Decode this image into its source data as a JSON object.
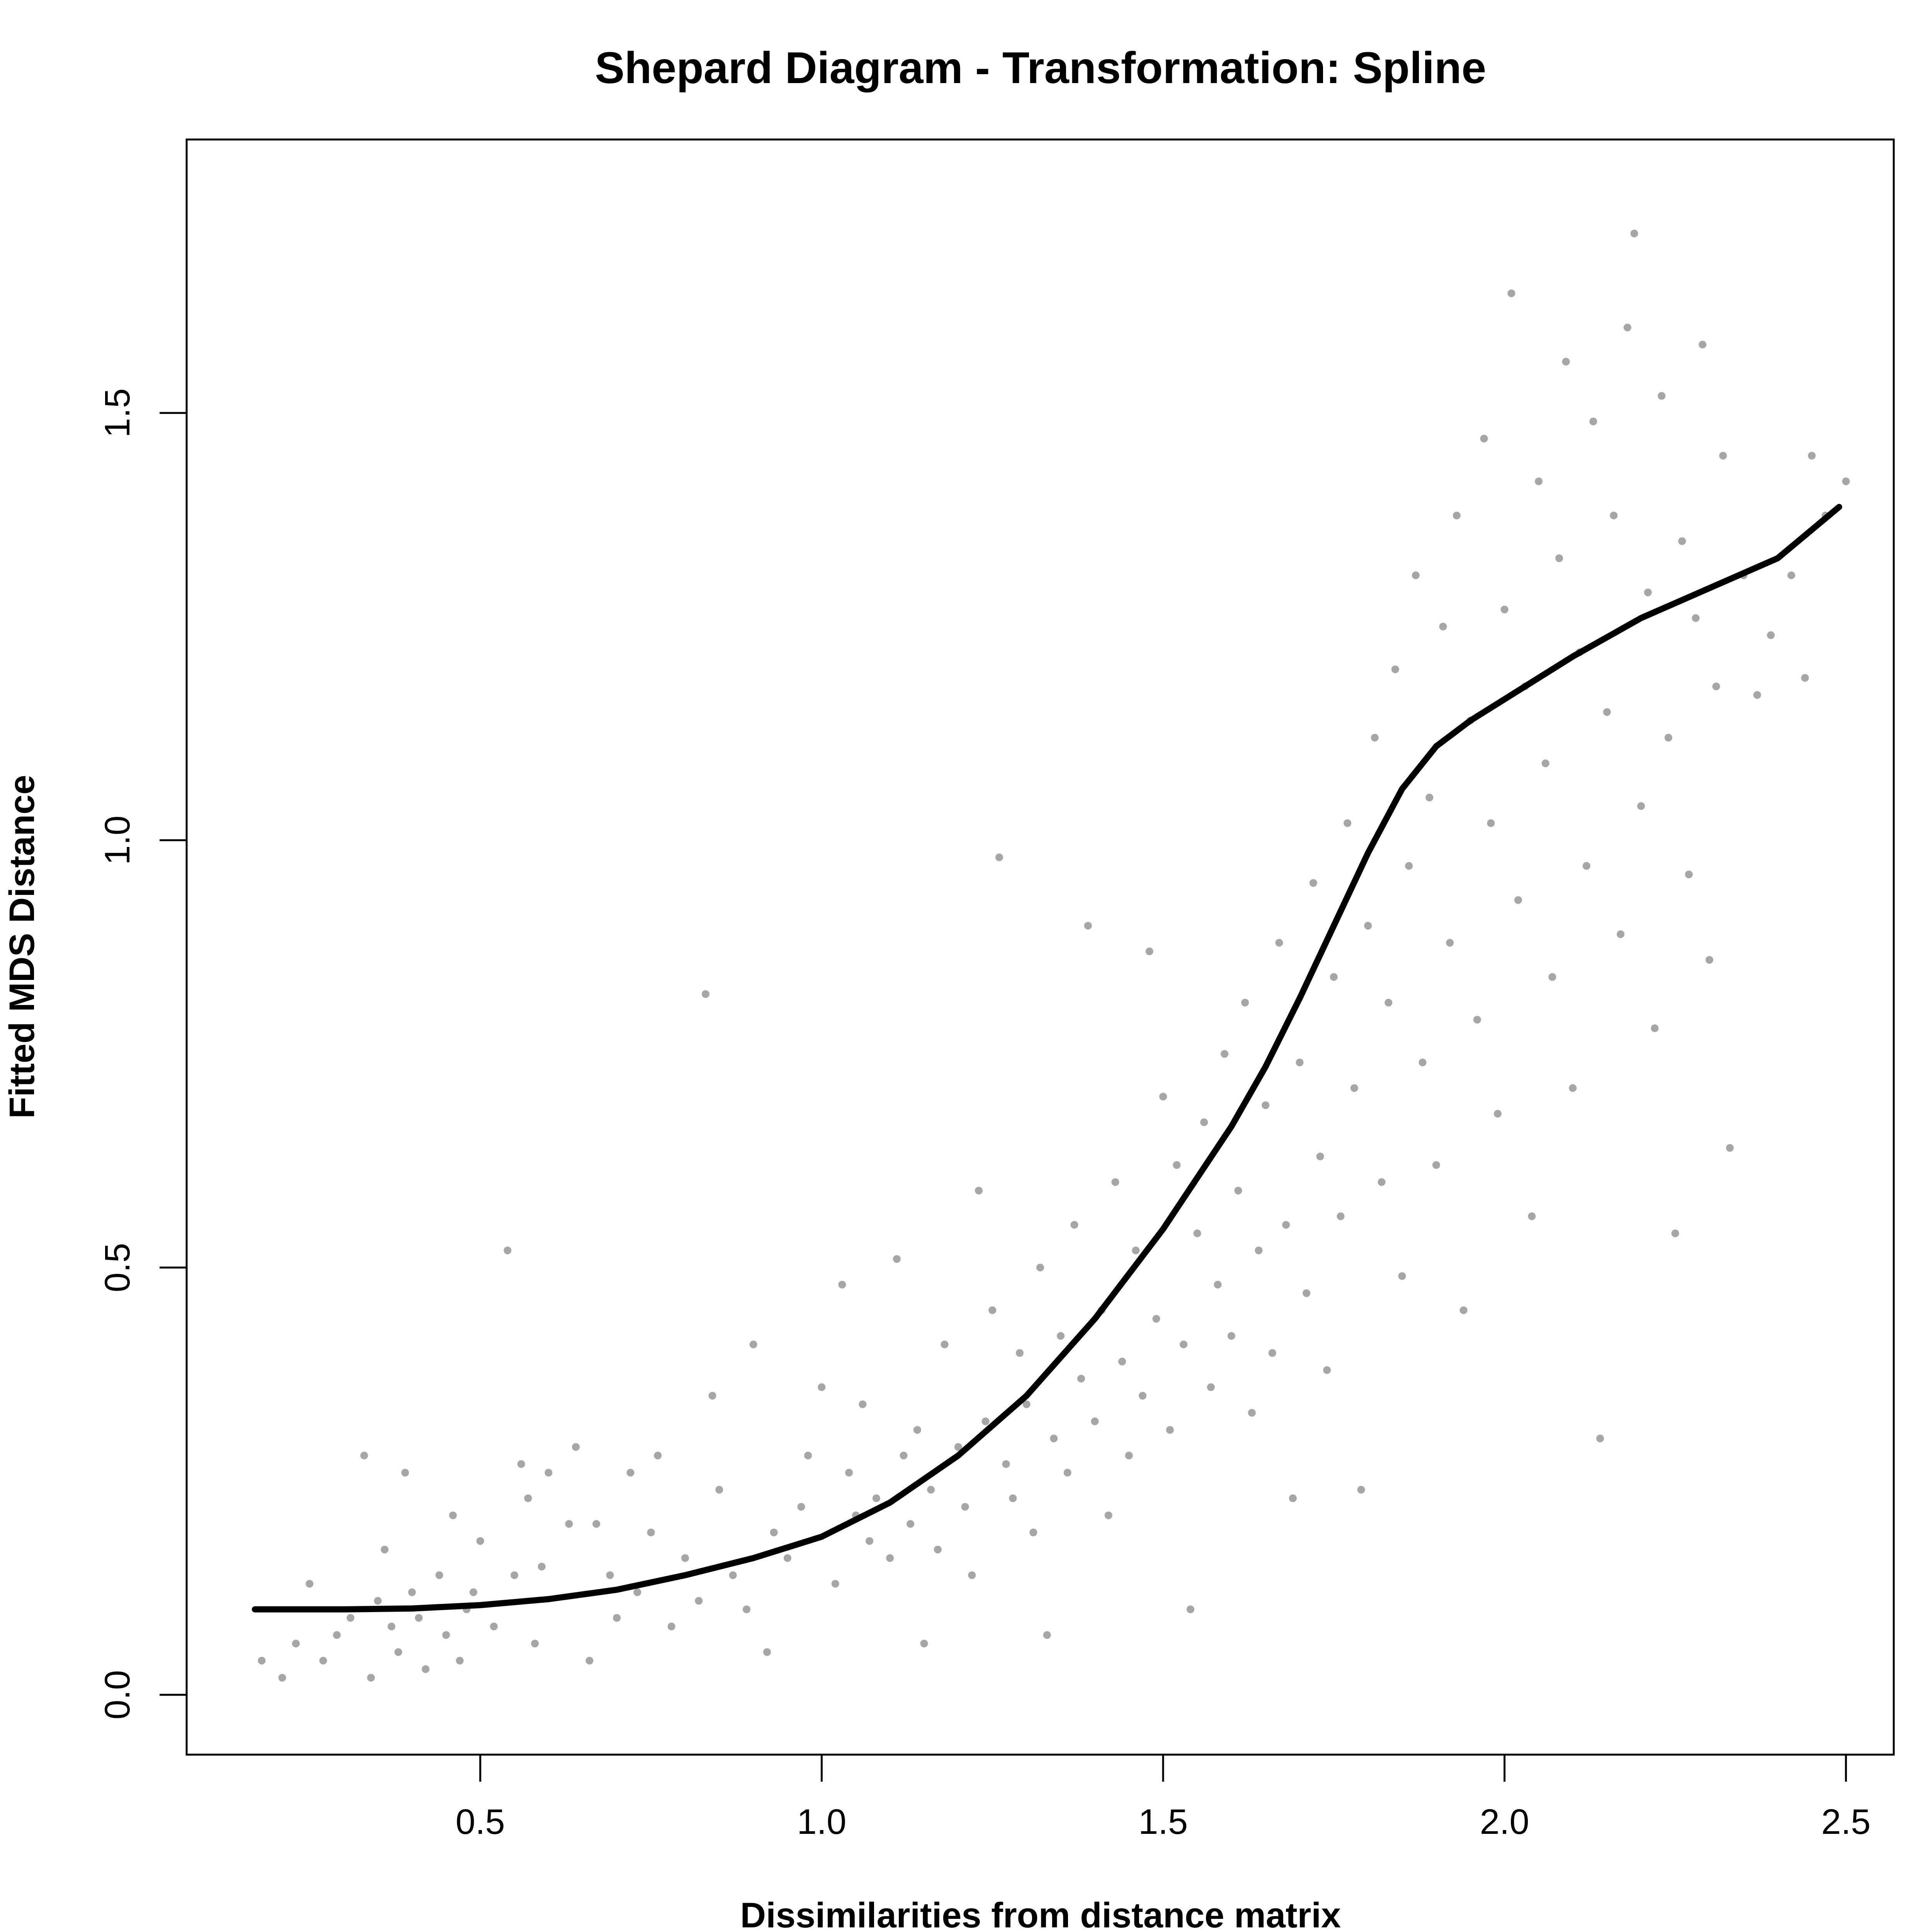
{
  "chart_data": {
    "type": "scatter",
    "title": "Shepard Diagram - Transformation: Spline",
    "xlabel": "Dissimilarities from distance matrix",
    "ylabel": "Fitted MDS Distance",
    "xlim": [
      0.07,
      2.57
    ],
    "ylim": [
      -0.07,
      1.82
    ],
    "x_ticks": [
      0.5,
      1.0,
      1.5,
      2.0,
      2.5
    ],
    "x_tick_labels": [
      "0.5",
      "1.0",
      "1.5",
      "2.0",
      "2.5"
    ],
    "y_ticks": [
      0.0,
      0.5,
      1.0,
      1.5
    ],
    "y_tick_labels": [
      "0.0",
      "0.5",
      "1.0",
      "1.5"
    ],
    "grid": false,
    "legend": "none",
    "series": [
      {
        "kind": "points",
        "color": "#a6a6a6",
        "values": [
          [
            0.18,
            0.04
          ],
          [
            0.21,
            0.02
          ],
          [
            0.23,
            0.06
          ],
          [
            0.25,
            0.13
          ],
          [
            0.27,
            0.04
          ],
          [
            0.29,
            0.07
          ],
          [
            0.31,
            0.09
          ],
          [
            0.33,
            0.28
          ],
          [
            0.34,
            0.02
          ],
          [
            0.35,
            0.11
          ],
          [
            0.36,
            0.17
          ],
          [
            0.37,
            0.08
          ],
          [
            0.38,
            0.05
          ],
          [
            0.39,
            0.26
          ],
          [
            0.4,
            0.12
          ],
          [
            0.41,
            0.09
          ],
          [
            0.42,
            0.03
          ],
          [
            0.44,
            0.14
          ],
          [
            0.45,
            0.07
          ],
          [
            0.46,
            0.21
          ],
          [
            0.47,
            0.04
          ],
          [
            0.48,
            0.1
          ],
          [
            0.49,
            0.12
          ],
          [
            0.5,
            0.18
          ],
          [
            0.52,
            0.08
          ],
          [
            0.54,
            0.52
          ],
          [
            0.55,
            0.14
          ],
          [
            0.56,
            0.27
          ],
          [
            0.57,
            0.23
          ],
          [
            0.58,
            0.06
          ],
          [
            0.59,
            0.15
          ],
          [
            0.6,
            0.26
          ],
          [
            0.63,
            0.2
          ],
          [
            0.64,
            0.29
          ],
          [
            0.66,
            0.04
          ],
          [
            0.67,
            0.2
          ],
          [
            0.69,
            0.14
          ],
          [
            0.7,
            0.09
          ],
          [
            0.72,
            0.26
          ],
          [
            0.73,
            0.12
          ],
          [
            0.75,
            0.19
          ],
          [
            0.76,
            0.28
          ],
          [
            0.78,
            0.08
          ],
          [
            0.8,
            0.16
          ],
          [
            0.82,
            0.11
          ],
          [
            0.83,
            0.82
          ],
          [
            0.84,
            0.35
          ],
          [
            0.85,
            0.24
          ],
          [
            0.87,
            0.14
          ],
          [
            0.89,
            0.1
          ],
          [
            0.9,
            0.41
          ],
          [
            0.92,
            0.05
          ],
          [
            0.93,
            0.19
          ],
          [
            0.95,
            0.16
          ],
          [
            0.97,
            0.22
          ],
          [
            0.98,
            0.28
          ],
          [
            1.0,
            0.36
          ],
          [
            1.02,
            0.13
          ],
          [
            1.03,
            0.48
          ],
          [
            1.04,
            0.26
          ],
          [
            1.05,
            0.21
          ],
          [
            1.06,
            0.34
          ],
          [
            1.07,
            0.18
          ],
          [
            1.08,
            0.23
          ],
          [
            1.1,
            0.16
          ],
          [
            1.11,
            0.51
          ],
          [
            1.12,
            0.28
          ],
          [
            1.13,
            0.2
          ],
          [
            1.14,
            0.31
          ],
          [
            1.15,
            0.06
          ],
          [
            1.16,
            0.24
          ],
          [
            1.17,
            0.17
          ],
          [
            1.18,
            0.41
          ],
          [
            1.2,
            0.29
          ],
          [
            1.21,
            0.22
          ],
          [
            1.22,
            0.14
          ],
          [
            1.23,
            0.59
          ],
          [
            1.24,
            0.32
          ],
          [
            1.25,
            0.45
          ],
          [
            1.26,
            0.98
          ],
          [
            1.27,
            0.27
          ],
          [
            1.28,
            0.23
          ],
          [
            1.29,
            0.4
          ],
          [
            1.3,
            0.34
          ],
          [
            1.31,
            0.19
          ],
          [
            1.32,
            0.5
          ],
          [
            1.33,
            0.07
          ],
          [
            1.34,
            0.3
          ],
          [
            1.35,
            0.42
          ],
          [
            1.36,
            0.26
          ],
          [
            1.37,
            0.55
          ],
          [
            1.38,
            0.37
          ],
          [
            1.39,
            0.9
          ],
          [
            1.4,
            0.32
          ],
          [
            1.41,
            0.45
          ],
          [
            1.42,
            0.21
          ],
          [
            1.43,
            0.6
          ],
          [
            1.44,
            0.39
          ],
          [
            1.45,
            0.28
          ],
          [
            1.46,
            0.52
          ],
          [
            1.47,
            0.35
          ],
          [
            1.48,
            0.87
          ],
          [
            1.49,
            0.44
          ],
          [
            1.5,
            0.7
          ],
          [
            1.51,
            0.31
          ],
          [
            1.52,
            0.62
          ],
          [
            1.53,
            0.41
          ],
          [
            1.54,
            0.1
          ],
          [
            1.55,
            0.54
          ],
          [
            1.56,
            0.67
          ],
          [
            1.57,
            0.36
          ],
          [
            1.58,
            0.48
          ],
          [
            1.59,
            0.75
          ],
          [
            1.6,
            0.42
          ],
          [
            1.61,
            0.59
          ],
          [
            1.62,
            0.81
          ],
          [
            1.63,
            0.33
          ],
          [
            1.64,
            0.52
          ],
          [
            1.65,
            0.69
          ],
          [
            1.66,
            0.4
          ],
          [
            1.67,
            0.88
          ],
          [
            1.68,
            0.55
          ],
          [
            1.69,
            0.23
          ],
          [
            1.7,
            0.74
          ],
          [
            1.71,
            0.47
          ],
          [
            1.72,
            0.95
          ],
          [
            1.73,
            0.63
          ],
          [
            1.74,
            0.38
          ],
          [
            1.75,
            0.84
          ],
          [
            1.76,
            0.56
          ],
          [
            1.77,
            1.02
          ],
          [
            1.78,
            0.71
          ],
          [
            1.79,
            0.24
          ],
          [
            1.8,
            0.9
          ],
          [
            1.81,
            1.12
          ],
          [
            1.82,
            0.6
          ],
          [
            1.83,
            0.81
          ],
          [
            1.84,
            1.2
          ],
          [
            1.85,
            0.49
          ],
          [
            1.86,
            0.97
          ],
          [
            1.87,
            1.31
          ],
          [
            1.88,
            0.74
          ],
          [
            1.89,
            1.05
          ],
          [
            1.9,
            0.62
          ],
          [
            1.91,
            1.25
          ],
          [
            1.92,
            0.88
          ],
          [
            1.93,
            1.38
          ],
          [
            1.94,
            0.45
          ],
          [
            1.95,
            1.14
          ],
          [
            1.96,
            0.79
          ],
          [
            1.97,
            1.47
          ],
          [
            1.98,
            1.02
          ],
          [
            1.99,
            0.68
          ],
          [
            2.0,
            1.27
          ],
          [
            2.01,
            1.64
          ],
          [
            2.02,
            0.93
          ],
          [
            2.03,
            1.18
          ],
          [
            2.04,
            0.56
          ],
          [
            2.05,
            1.42
          ],
          [
            2.06,
            1.09
          ],
          [
            2.07,
            0.84
          ],
          [
            2.08,
            1.33
          ],
          [
            2.09,
            1.56
          ],
          [
            2.1,
            0.71
          ],
          [
            2.11,
            1.22
          ],
          [
            2.12,
            0.97
          ],
          [
            2.13,
            1.49
          ],
          [
            2.14,
            0.3
          ],
          [
            2.15,
            1.15
          ],
          [
            2.16,
            1.38
          ],
          [
            2.17,
            0.89
          ],
          [
            2.18,
            1.6
          ],
          [
            2.19,
            1.71
          ],
          [
            2.2,
            1.04
          ],
          [
            2.21,
            1.29
          ],
          [
            2.22,
            0.78
          ],
          [
            2.23,
            1.52
          ],
          [
            2.24,
            1.12
          ],
          [
            2.25,
            0.54
          ],
          [
            2.26,
            1.35
          ],
          [
            2.27,
            0.96
          ],
          [
            2.28,
            1.26
          ],
          [
            2.29,
            1.58
          ],
          [
            2.3,
            0.86
          ],
          [
            2.31,
            1.18
          ],
          [
            2.32,
            1.45
          ],
          [
            2.33,
            0.64
          ],
          [
            2.35,
            1.31
          ],
          [
            2.37,
            1.17
          ],
          [
            2.39,
            1.24
          ],
          [
            2.42,
            1.31
          ],
          [
            2.44,
            1.19
          ],
          [
            2.45,
            1.45
          ],
          [
            2.47,
            1.38
          ],
          [
            2.5,
            1.42
          ]
        ]
      },
      {
        "kind": "fitted-line",
        "color": "#000000",
        "values": [
          [
            0.17,
            0.1
          ],
          [
            0.3,
            0.1
          ],
          [
            0.4,
            0.101
          ],
          [
            0.5,
            0.105
          ],
          [
            0.6,
            0.112
          ],
          [
            0.7,
            0.123
          ],
          [
            0.8,
            0.14
          ],
          [
            0.9,
            0.16
          ],
          [
            1.0,
            0.185
          ],
          [
            1.1,
            0.225
          ],
          [
            1.2,
            0.28
          ],
          [
            1.3,
            0.35
          ],
          [
            1.4,
            0.44
          ],
          [
            1.5,
            0.545
          ],
          [
            1.6,
            0.665
          ],
          [
            1.65,
            0.735
          ],
          [
            1.7,
            0.815
          ],
          [
            1.75,
            0.9
          ],
          [
            1.8,
            0.985
          ],
          [
            1.85,
            1.06
          ],
          [
            1.9,
            1.11
          ],
          [
            1.95,
            1.14
          ],
          [
            2.0,
            1.165
          ],
          [
            2.1,
            1.215
          ],
          [
            2.2,
            1.26
          ],
          [
            2.3,
            1.295
          ],
          [
            2.4,
            1.33
          ],
          [
            2.49,
            1.39
          ]
        ]
      }
    ]
  }
}
